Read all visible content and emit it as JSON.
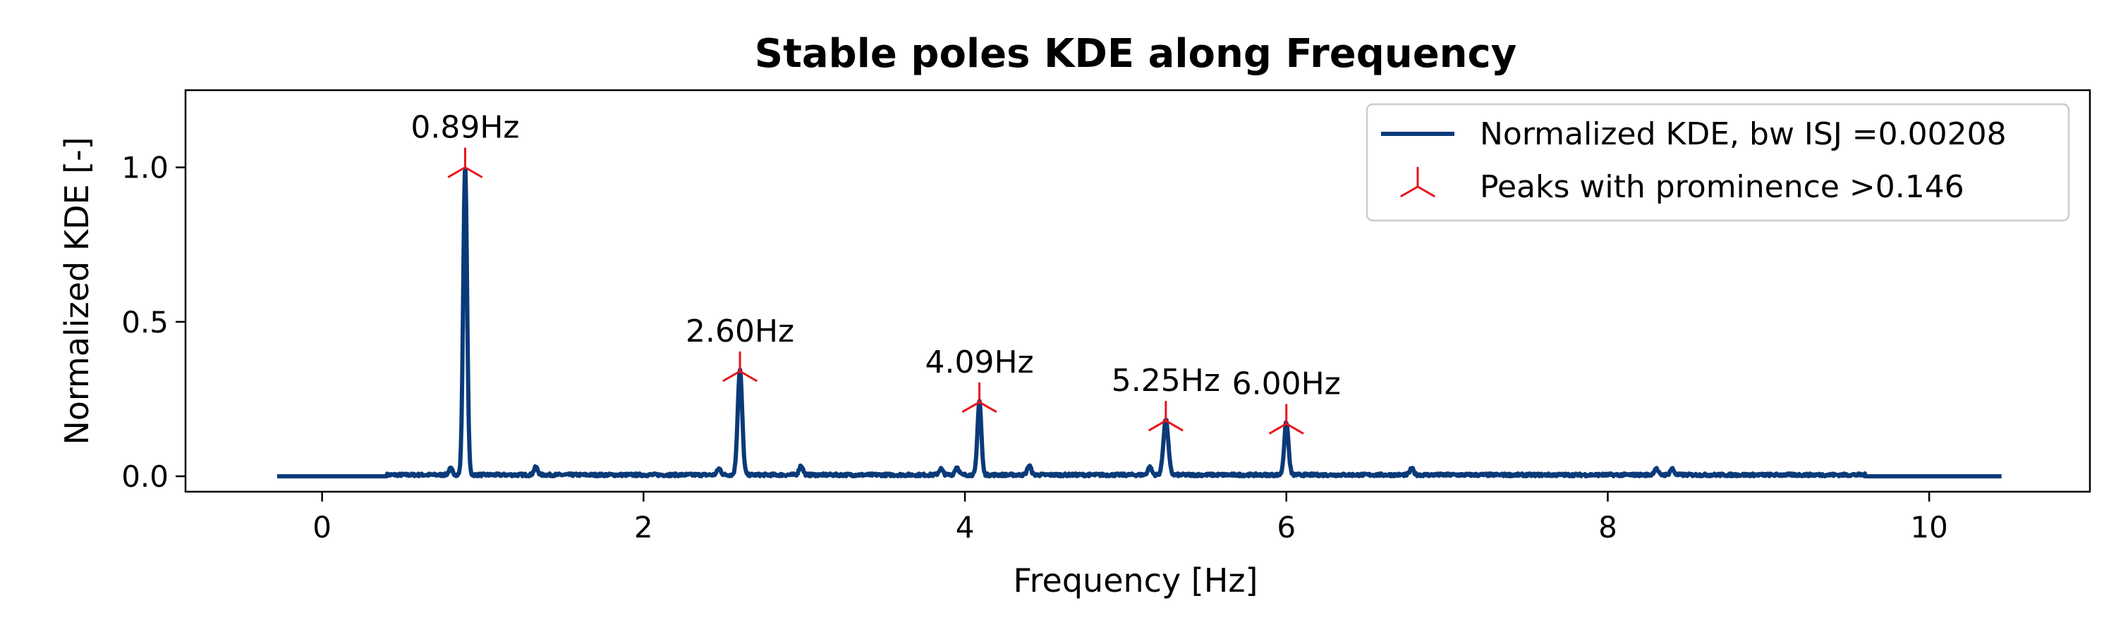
{
  "chart_data": {
    "type": "line",
    "title": "Stable poles KDE along Frequency",
    "xlabel": "Frequency [Hz]",
    "ylabel": "Normalized KDE [-]",
    "xlim": [
      -0.85,
      11.0
    ],
    "ylim": [
      -0.05,
      1.25
    ],
    "xticks": [
      0,
      2,
      4,
      6,
      8,
      10
    ],
    "xtick_labels": [
      "0",
      "2",
      "4",
      "6",
      "8",
      "10"
    ],
    "yticks": [
      0.0,
      0.5,
      1.0
    ],
    "ytick_labels": [
      "0.0",
      "0.5",
      "1.0"
    ],
    "grid": false,
    "legend_position": "top-right",
    "series": [
      {
        "name": "Normalized KDE, bw ISJ =0.00208",
        "color": "#0a3a78",
        "x_range": [
          -0.28,
          10.45
        ],
        "baseline": 0.0,
        "peaks": [
          {
            "x": 0.89,
            "y": 1.0,
            "width": 0.012
          },
          {
            "x": 2.6,
            "y": 0.34,
            "width": 0.014
          },
          {
            "x": 4.09,
            "y": 0.24,
            "width": 0.012
          },
          {
            "x": 5.25,
            "y": 0.18,
            "width": 0.015
          },
          {
            "x": 6.0,
            "y": 0.17,
            "width": 0.013
          }
        ],
        "minor_bumps": [
          {
            "x": 0.8,
            "y": 0.02
          },
          {
            "x": 1.33,
            "y": 0.025
          },
          {
            "x": 2.47,
            "y": 0.02
          },
          {
            "x": 2.98,
            "y": 0.03
          },
          {
            "x": 3.85,
            "y": 0.02
          },
          {
            "x": 3.95,
            "y": 0.025
          },
          {
            "x": 4.4,
            "y": 0.03
          },
          {
            "x": 5.15,
            "y": 0.025
          },
          {
            "x": 6.78,
            "y": 0.02
          },
          {
            "x": 8.3,
            "y": 0.02
          },
          {
            "x": 8.4,
            "y": 0.02
          }
        ]
      }
    ],
    "markers": {
      "name": "Peaks with prominence >0.146",
      "color": "#e8141c",
      "points": [
        {
          "x": 0.89,
          "y": 1.0,
          "label": "0.89Hz"
        },
        {
          "x": 2.6,
          "y": 0.34,
          "label": "2.60Hz"
        },
        {
          "x": 4.09,
          "y": 0.24,
          "label": "4.09Hz"
        },
        {
          "x": 5.25,
          "y": 0.18,
          "label": "5.25Hz"
        },
        {
          "x": 6.0,
          "y": 0.17,
          "label": "6.00Hz"
        }
      ]
    }
  }
}
